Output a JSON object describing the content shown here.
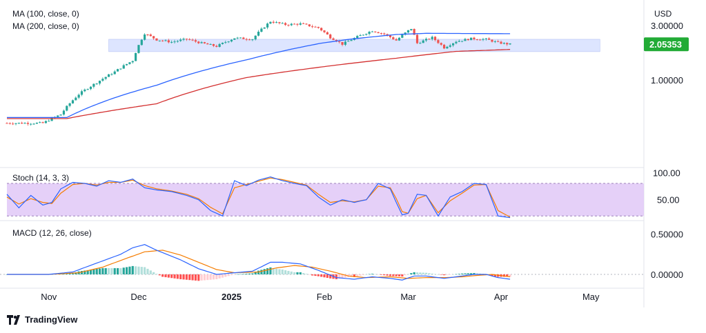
{
  "currency": "USD",
  "brand": "TradingView",
  "last_price_label": "2.05353",
  "colors": {
    "up": "#26a69a",
    "down": "#ef5350",
    "ma100": "#2962ff",
    "ma200": "#d32f2f",
    "zone": "#c7d4ff",
    "stoch_band": "#e1c8f7",
    "stoch_k": "#2962ff",
    "stoch_d": "#f57c00",
    "macd_line": "#2962ff",
    "signal_line": "#f57c00",
    "price_badge": "#22ab36"
  },
  "price_panel": {
    "ma100_label": "MA (100, close, 0)",
    "ma200_label": "MA (200, close, 0)",
    "ticks": [
      {
        "value": 3.0,
        "label": "3.00000"
      },
      {
        "value": 1.0,
        "label": "1.00000"
      }
    ],
    "ylim": [
      0.2,
      3.9
    ],
    "zone": {
      "low": 1.77,
      "high": 2.27,
      "start_index": 34,
      "end_index": 198
    }
  },
  "stoch_panel": {
    "label": "Stoch (14, 3, 3)",
    "ticks": [
      {
        "value": 100,
        "label": "100.00"
      },
      {
        "value": 50,
        "label": "50.00"
      }
    ],
    "upper_band": 80,
    "lower_band": 20,
    "ylim": [
      14,
      108
    ]
  },
  "macd_panel": {
    "label": "MACD (12, 26, close)",
    "ticks": [
      {
        "value": 0.5,
        "label": "0.50000"
      },
      {
        "value": 0.0,
        "label": "0.00000"
      }
    ],
    "ylim": [
      -0.12,
      0.65
    ]
  },
  "time_axis": [
    {
      "label": "Nov",
      "index": 14
    },
    {
      "label": "Dec",
      "index": 44
    },
    {
      "label": "2025",
      "index": 75
    },
    {
      "label": "Feb",
      "index": 106
    },
    {
      "label": "Mar",
      "index": 134
    },
    {
      "label": "Apr",
      "index": 165
    },
    {
      "label": "May",
      "index": 195
    }
  ],
  "chart_data": {
    "type": "candlestick",
    "x_index_range": [
      0,
      212
    ],
    "price_anchors": [
      [
        0,
        0.42
      ],
      [
        12,
        0.42
      ],
      [
        18,
        0.5
      ],
      [
        24,
        0.75
      ],
      [
        30,
        0.95
      ],
      [
        36,
        1.18
      ],
      [
        42,
        1.48
      ],
      [
        46,
        2.55
      ],
      [
        50,
        2.25
      ],
      [
        55,
        2.15
      ],
      [
        60,
        2.28
      ],
      [
        65,
        2.1
      ],
      [
        70,
        1.97
      ],
      [
        76,
        2.33
      ],
      [
        82,
        2.28
      ],
      [
        88,
        3.25
      ],
      [
        93,
        3.05
      ],
      [
        98,
        3.1
      ],
      [
        104,
        2.86
      ],
      [
        108,
        2.36
      ],
      [
        112,
        2.06
      ],
      [
        118,
        2.45
      ],
      [
        122,
        2.7
      ],
      [
        126,
        2.52
      ],
      [
        130,
        2.22
      ],
      [
        135,
        2.82
      ],
      [
        137,
        2.1
      ],
      [
        142,
        2.35
      ],
      [
        146,
        1.92
      ],
      [
        150,
        2.18
      ],
      [
        155,
        2.3
      ],
      [
        160,
        2.27
      ],
      [
        164,
        2.12
      ],
      [
        168,
        2.05353
      ]
    ],
    "ma100_anchors": [
      [
        0,
        0.47
      ],
      [
        20,
        0.47
      ],
      [
        50,
        0.9
      ],
      [
        80,
        1.5
      ],
      [
        105,
        2.1
      ],
      [
        115,
        2.28
      ],
      [
        130,
        2.5
      ],
      [
        140,
        2.56
      ],
      [
        168,
        2.54
      ]
    ],
    "ma200_anchors": [
      [
        0,
        0.46
      ],
      [
        20,
        0.46
      ],
      [
        50,
        0.62
      ],
      [
        80,
        1.05
      ],
      [
        105,
        1.3
      ],
      [
        130,
        1.55
      ],
      [
        150,
        1.78
      ],
      [
        168,
        1.85
      ]
    ],
    "stoch_k_anchors": [
      [
        0,
        60
      ],
      [
        4,
        35
      ],
      [
        8,
        58
      ],
      [
        12,
        40
      ],
      [
        15,
        45
      ],
      [
        18,
        70
      ],
      [
        22,
        82
      ],
      [
        26,
        80
      ],
      [
        30,
        75
      ],
      [
        34,
        85
      ],
      [
        38,
        82
      ],
      [
        42,
        88
      ],
      [
        46,
        72
      ],
      [
        50,
        68
      ],
      [
        55,
        65
      ],
      [
        60,
        58
      ],
      [
        64,
        50
      ],
      [
        68,
        30
      ],
      [
        72,
        20
      ],
      [
        76,
        85
      ],
      [
        80,
        76
      ],
      [
        84,
        86
      ],
      [
        88,
        92
      ],
      [
        92,
        85
      ],
      [
        96,
        80
      ],
      [
        100,
        76
      ],
      [
        104,
        55
      ],
      [
        108,
        40
      ],
      [
        112,
        50
      ],
      [
        116,
        45
      ],
      [
        120,
        50
      ],
      [
        124,
        80
      ],
      [
        128,
        70
      ],
      [
        130,
        45
      ],
      [
        132,
        22
      ],
      [
        134,
        25
      ],
      [
        137,
        60
      ],
      [
        140,
        58
      ],
      [
        144,
        20
      ],
      [
        148,
        55
      ],
      [
        152,
        65
      ],
      [
        156,
        80
      ],
      [
        160,
        78
      ],
      [
        164,
        20
      ],
      [
        168,
        17
      ]
    ],
    "stoch_d_anchors": [
      [
        0,
        55
      ],
      [
        4,
        42
      ],
      [
        8,
        52
      ],
      [
        12,
        45
      ],
      [
        15,
        43
      ],
      [
        18,
        62
      ],
      [
        22,
        78
      ],
      [
        26,
        80
      ],
      [
        30,
        77
      ],
      [
        34,
        82
      ],
      [
        38,
        82
      ],
      [
        42,
        86
      ],
      [
        46,
        76
      ],
      [
        50,
        70
      ],
      [
        55,
        66
      ],
      [
        60,
        60
      ],
      [
        64,
        52
      ],
      [
        68,
        36
      ],
      [
        72,
        24
      ],
      [
        76,
        72
      ],
      [
        80,
        78
      ],
      [
        84,
        84
      ],
      [
        88,
        90
      ],
      [
        92,
        87
      ],
      [
        96,
        82
      ],
      [
        100,
        77
      ],
      [
        104,
        60
      ],
      [
        108,
        45
      ],
      [
        112,
        48
      ],
      [
        116,
        46
      ],
      [
        120,
        50
      ],
      [
        124,
        75
      ],
      [
        128,
        72
      ],
      [
        130,
        52
      ],
      [
        132,
        28
      ],
      [
        134,
        25
      ],
      [
        137,
        52
      ],
      [
        140,
        58
      ],
      [
        144,
        26
      ],
      [
        148,
        48
      ],
      [
        152,
        62
      ],
      [
        156,
        77
      ],
      [
        160,
        78
      ],
      [
        164,
        30
      ],
      [
        168,
        18
      ]
    ],
    "macd_anchors": [
      [
        0,
        0.0
      ],
      [
        14,
        0.0
      ],
      [
        22,
        0.03
      ],
      [
        30,
        0.14
      ],
      [
        38,
        0.25
      ],
      [
        42,
        0.33
      ],
      [
        46,
        0.37
      ],
      [
        50,
        0.3
      ],
      [
        58,
        0.18
      ],
      [
        64,
        0.07
      ],
      [
        70,
        0.0
      ],
      [
        76,
        0.02
      ],
      [
        82,
        0.04
      ],
      [
        88,
        0.15
      ],
      [
        92,
        0.15
      ],
      [
        98,
        0.13
      ],
      [
        104,
        0.05
      ],
      [
        110,
        -0.04
      ],
      [
        116,
        -0.06
      ],
      [
        122,
        -0.03
      ],
      [
        128,
        -0.05
      ],
      [
        132,
        -0.07
      ],
      [
        136,
        -0.02
      ],
      [
        140,
        -0.02
      ],
      [
        146,
        -0.05
      ],
      [
        152,
        -0.02
      ],
      [
        156,
        0.0
      ],
      [
        160,
        0.0
      ],
      [
        164,
        -0.04
      ],
      [
        168,
        -0.06
      ]
    ],
    "signal_anchors": [
      [
        0,
        0.0
      ],
      [
        14,
        0.0
      ],
      [
        24,
        0.02
      ],
      [
        32,
        0.09
      ],
      [
        40,
        0.2
      ],
      [
        46,
        0.28
      ],
      [
        52,
        0.3
      ],
      [
        58,
        0.24
      ],
      [
        64,
        0.15
      ],
      [
        70,
        0.06
      ],
      [
        76,
        0.02
      ],
      [
        84,
        0.03
      ],
      [
        90,
        0.08
      ],
      [
        96,
        0.11
      ],
      [
        102,
        0.09
      ],
      [
        108,
        0.04
      ],
      [
        114,
        -0.02
      ],
      [
        120,
        -0.04
      ],
      [
        128,
        -0.03
      ],
      [
        134,
        -0.05
      ],
      [
        140,
        -0.04
      ],
      [
        146,
        -0.04
      ],
      [
        152,
        -0.03
      ],
      [
        158,
        -0.01
      ],
      [
        162,
        0.0
      ],
      [
        168,
        -0.03
      ]
    ]
  }
}
